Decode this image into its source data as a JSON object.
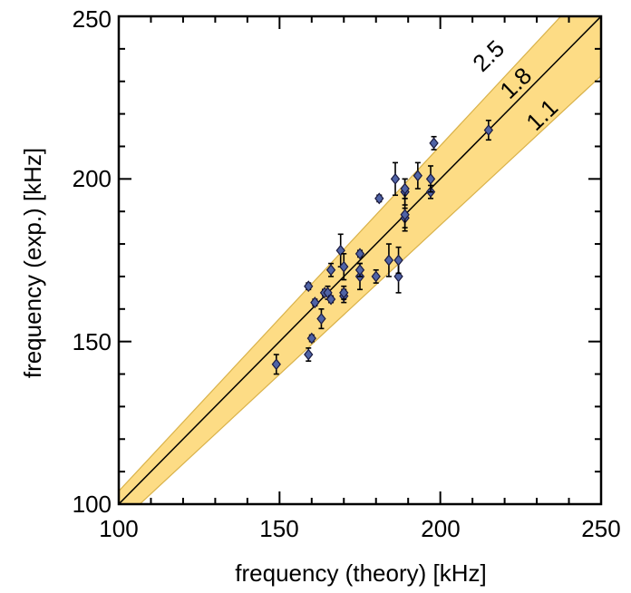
{
  "chart_data": {
    "type": "scatter",
    "xlabel": "frequency (theory) [kHz]",
    "ylabel": "frequency (exp.) [kHz]",
    "xlim": [
      100,
      250
    ],
    "ylim": [
      100,
      250
    ],
    "x_ticks": [
      "100",
      "150",
      "200",
      "250"
    ],
    "y_ticks": [
      "100",
      "150",
      "200",
      "250"
    ],
    "grid": false,
    "colors": {
      "band": "#fddc85",
      "band_edge": "#d9b24a",
      "marker": "#4f63a6",
      "marker_edge": "#1a1a40",
      "line": "#000000"
    },
    "lines": [
      {
        "label": "1.8",
        "slope": 1.0
      }
    ],
    "band": {
      "upper": {
        "label": "2.5",
        "slope": 1.062
      },
      "lower": {
        "label": "1.1",
        "slope": 0.918
      }
    },
    "points": [
      {
        "x": 149,
        "y": 143,
        "err": 3
      },
      {
        "x": 159,
        "y": 146,
        "err": 2
      },
      {
        "x": 159,
        "y": 167,
        "err": 1
      },
      {
        "x": 160,
        "y": 151,
        "err": 1
      },
      {
        "x": 161,
        "y": 162,
        "err": 1
      },
      {
        "x": 163,
        "y": 157,
        "err": 3
      },
      {
        "x": 164,
        "y": 165,
        "err": 1
      },
      {
        "x": 165,
        "y": 165,
        "err": 2
      },
      {
        "x": 166,
        "y": 163,
        "err": 1
      },
      {
        "x": 166,
        "y": 172,
        "err": 2
      },
      {
        "x": 169,
        "y": 178,
        "err": 5
      },
      {
        "x": 170,
        "y": 164,
        "err": 2
      },
      {
        "x": 170,
        "y": 165,
        "err": 2
      },
      {
        "x": 170,
        "y": 173,
        "err": 4
      },
      {
        "x": 175,
        "y": 170,
        "err": 4
      },
      {
        "x": 175,
        "y": 172,
        "err": 2
      },
      {
        "x": 175,
        "y": 177,
        "err": 1
      },
      {
        "x": 180,
        "y": 170,
        "err": 2
      },
      {
        "x": 181,
        "y": 194,
        "err": 1
      },
      {
        "x": 184,
        "y": 175,
        "err": 5
      },
      {
        "x": 186,
        "y": 200,
        "err": 5
      },
      {
        "x": 187,
        "y": 170,
        "err": 5
      },
      {
        "x": 187,
        "y": 175,
        "err": 4
      },
      {
        "x": 189,
        "y": 188,
        "err": 3
      },
      {
        "x": 189,
        "y": 189,
        "err": 5
      },
      {
        "x": 189,
        "y": 196,
        "err": 4
      },
      {
        "x": 189,
        "y": 197,
        "err": 3
      },
      {
        "x": 193,
        "y": 201,
        "err": 4
      },
      {
        "x": 197,
        "y": 196,
        "err": 2
      },
      {
        "x": 197,
        "y": 200,
        "err": 4
      },
      {
        "x": 198,
        "y": 211,
        "err": 2
      },
      {
        "x": 215,
        "y": 215,
        "err": 3
      }
    ]
  }
}
